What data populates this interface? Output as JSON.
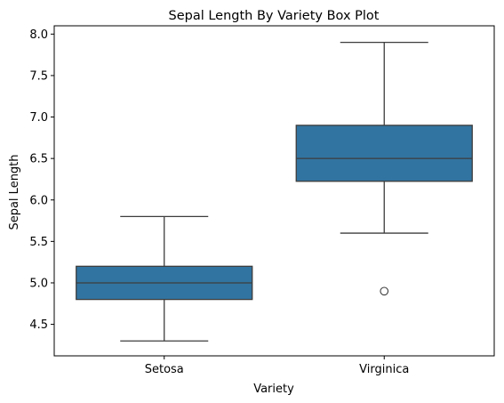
{
  "chart_data": {
    "type": "box",
    "title": "Sepal Length By Variety Box Plot",
    "xlabel": "Variety",
    "ylabel": "Sepal Length",
    "ylim": [
      4.12,
      8.1
    ],
    "yticks": [
      "4.5",
      "5.0",
      "5.5",
      "6.0",
      "6.5",
      "7.0",
      "7.5",
      "8.0"
    ],
    "categories": [
      "Setosa",
      "Virginica"
    ],
    "grid": false,
    "box_color": "#3274a1",
    "line_color": "#3d3d3d",
    "boxes": [
      {
        "category": "Setosa",
        "whisker_low": 4.3,
        "q1": 4.8,
        "median": 5.0,
        "q3": 5.2,
        "whisker_high": 5.8,
        "outliers": []
      },
      {
        "category": "Virginica",
        "whisker_low": 5.6,
        "q1": 6.225,
        "median": 6.5,
        "q3": 6.9,
        "whisker_high": 7.9,
        "outliers": [
          4.9
        ]
      }
    ]
  }
}
